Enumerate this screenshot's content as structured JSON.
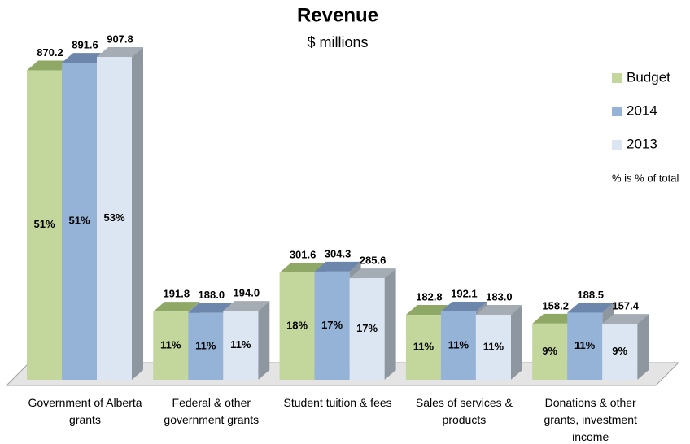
{
  "chart_data": {
    "type": "bar3d",
    "title": "Revenue",
    "subtitle": "$ millions",
    "note": "% is % of total",
    "categories": [
      "Government of Alberta grants",
      "Federal & other government grants",
      "Student tuition & fees",
      "Sales of services & products",
      "Donations & other grants, investment income"
    ],
    "series": [
      {
        "name": "Budget",
        "color": "#c3d69b",
        "top_color": "#8fa866",
        "values": [
          870.2,
          191.8,
          301.6,
          182.8,
          158.2
        ],
        "value_labels": [
          "870.2",
          "191.8",
          "301.6",
          "182.8",
          "158.2"
        ],
        "share_labels": [
          "51%",
          "11%",
          "18%",
          "11%",
          "9%"
        ]
      },
      {
        "name": "2014",
        "color": "#95b3d7",
        "top_color": "#6c87ab",
        "values": [
          891.6,
          188.0,
          304.3,
          192.1,
          188.5
        ],
        "value_labels": [
          "891.6",
          "188.0",
          "304.3",
          "192.1",
          "188.5"
        ],
        "share_labels": [
          "51%",
          "11%",
          "17%",
          "11%",
          "11%"
        ]
      },
      {
        "name": "2013",
        "color": "#dce6f2",
        "top_color": "#a6acb3",
        "values": [
          907.8,
          194.0,
          285.6,
          183.0,
          157.4
        ],
        "value_labels": [
          "907.8",
          "194.0",
          "285.6",
          "183.0",
          "157.4"
        ],
        "share_labels": [
          "53%",
          "11%",
          "17%",
          "11%",
          "9%"
        ]
      }
    ],
    "legend": "right"
  }
}
